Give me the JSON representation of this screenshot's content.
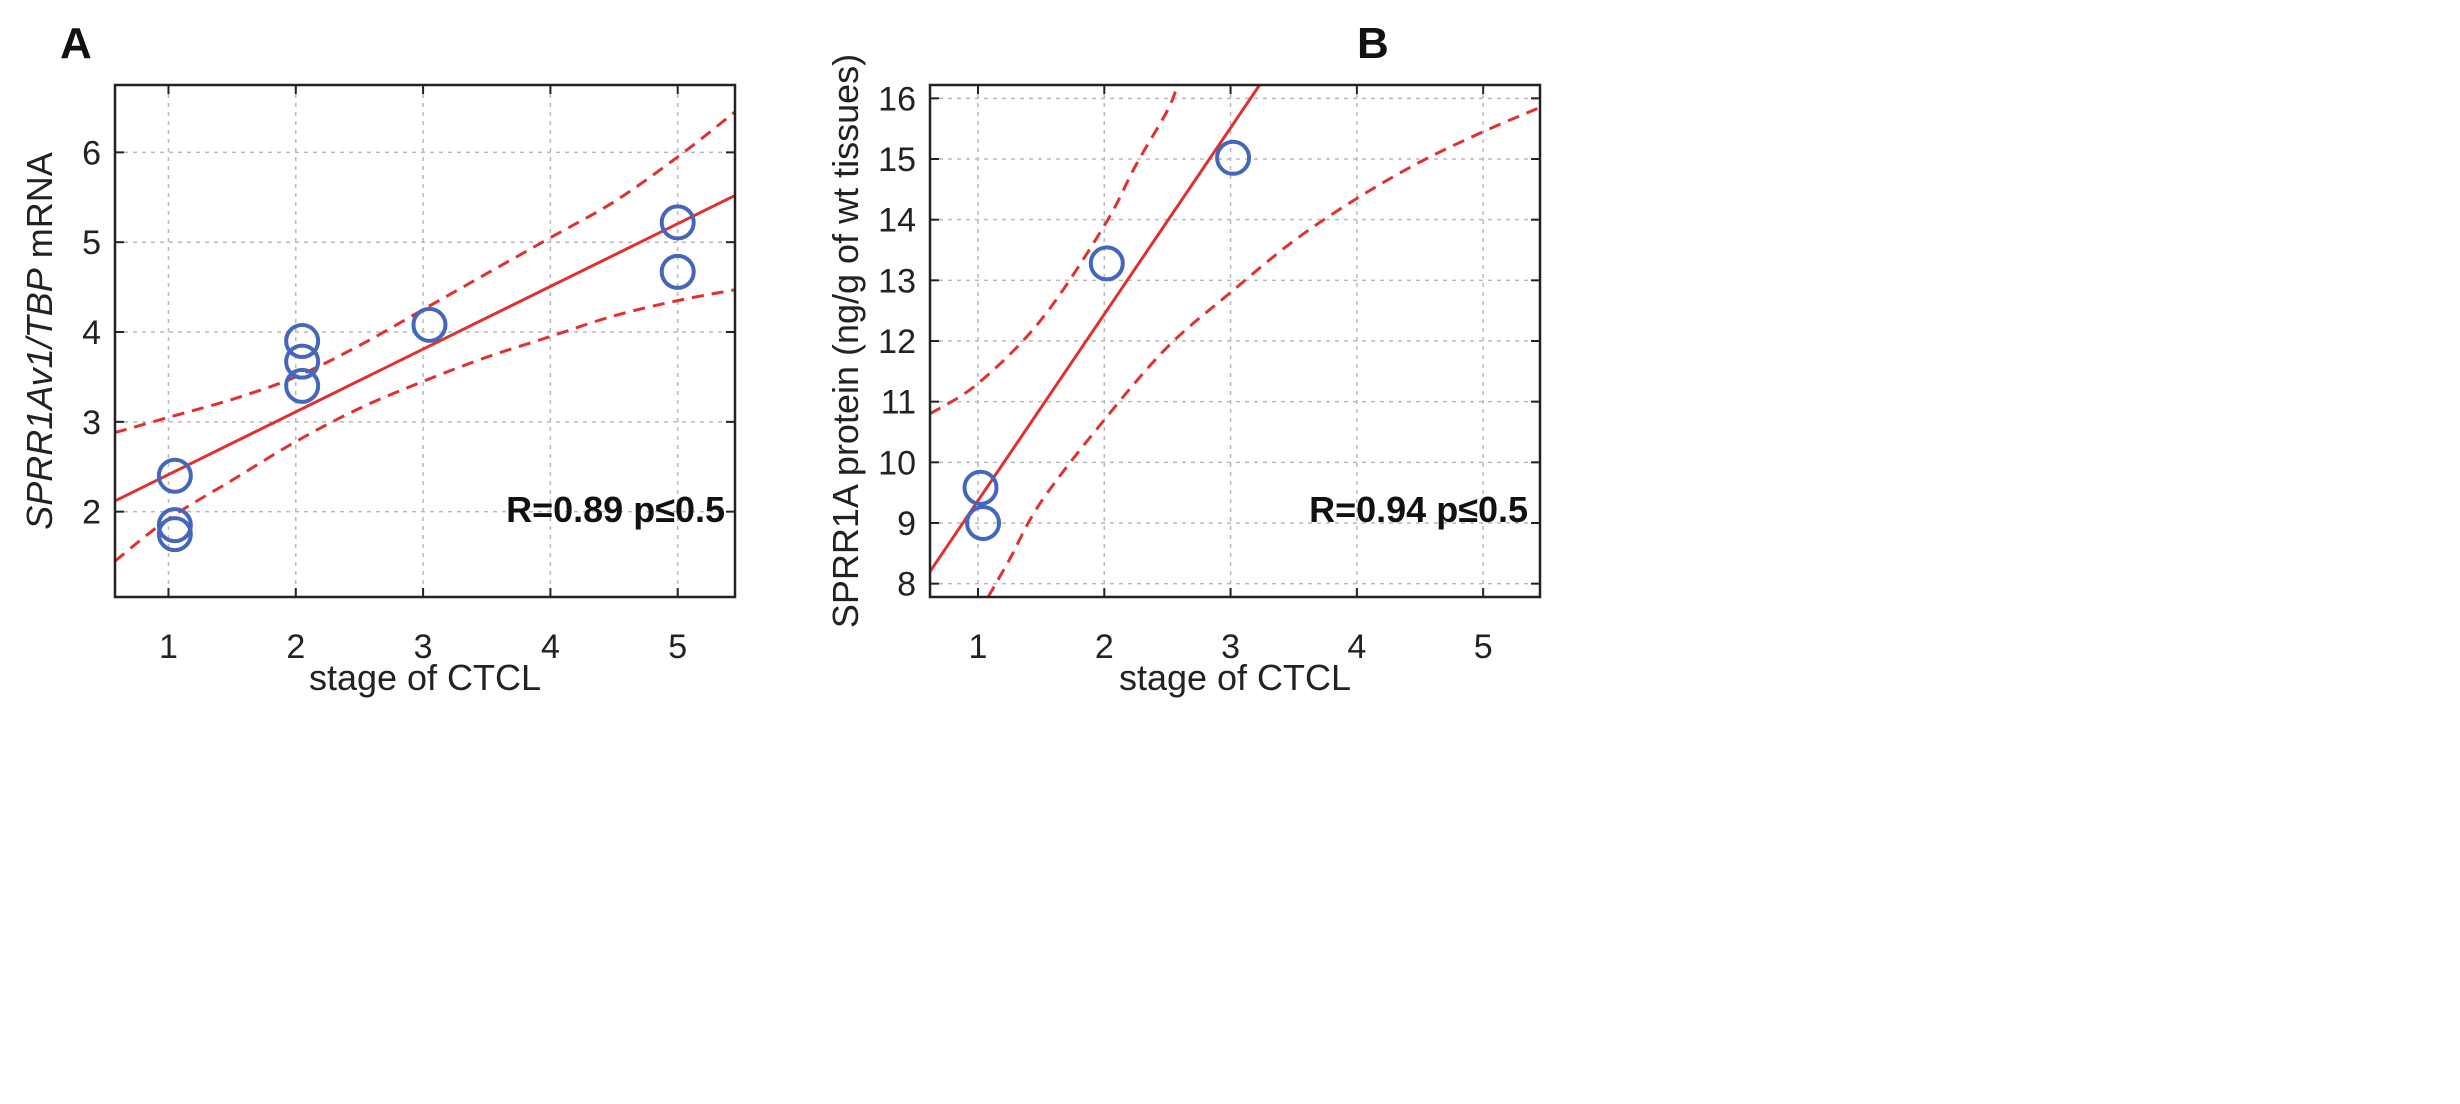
{
  "colors": {
    "fit": "#e03131",
    "points": "#4466bb"
  },
  "chart_data": [
    {
      "type": "scatter",
      "panel_label": "A",
      "xlabel": "stage of CTCL",
      "ylabel_parts": [
        {
          "text": "SPRR1Av1/TBP",
          "italic": true
        },
        {
          "text": " mRNA",
          "italic": false
        }
      ],
      "xlim": [
        0.58,
        5.45
      ],
      "ylim": [
        1.05,
        6.75
      ],
      "xticks": [
        1,
        2,
        3,
        4,
        5
      ],
      "yticks": [
        2,
        3,
        4,
        5,
        6
      ],
      "grid": true,
      "annotation": "R=0.89 p≤0.5",
      "points": [
        {
          "x": 1.05,
          "y": 2.4
        },
        {
          "x": 1.05,
          "y": 1.85
        },
        {
          "x": 1.05,
          "y": 1.75
        },
        {
          "x": 2.05,
          "y": 3.9
        },
        {
          "x": 2.05,
          "y": 3.67
        },
        {
          "x": 2.05,
          "y": 3.4
        },
        {
          "x": 3.05,
          "y": 4.08
        },
        {
          "x": 5.0,
          "y": 5.22
        },
        {
          "x": 5.0,
          "y": 4.67
        }
      ],
      "fit_line": {
        "x": [
          0.58,
          5.45
        ],
        "y": [
          2.12,
          5.52
        ]
      },
      "ci_upper": {
        "x": [
          0.58,
          1.0,
          1.5,
          2.0,
          2.5,
          3.0,
          3.5,
          4.0,
          4.5,
          5.0,
          5.45
        ],
        "y": [
          2.88,
          3.05,
          3.25,
          3.5,
          3.85,
          4.25,
          4.65,
          5.05,
          5.45,
          5.95,
          6.45
        ]
      },
      "ci_lower": {
        "x": [
          0.58,
          1.0,
          1.5,
          2.0,
          2.5,
          3.0,
          3.5,
          4.0,
          4.5,
          5.0,
          5.45
        ],
        "y": [
          1.45,
          1.92,
          2.35,
          2.78,
          3.15,
          3.45,
          3.72,
          3.95,
          4.18,
          4.35,
          4.47
        ]
      }
    },
    {
      "type": "scatter",
      "panel_label": "B",
      "xlabel": "stage of CTCL",
      "ylabel_parts": [
        {
          "text": "SPRR1A protein (ng/g of wt tissues)",
          "italic": false
        }
      ],
      "xlim": [
        0.62,
        5.45
      ],
      "ylim": [
        7.78,
        16.22
      ],
      "xticks": [
        1,
        2,
        3,
        4,
        5
      ],
      "yticks": [
        8,
        9,
        10,
        11,
        12,
        13,
        14,
        15,
        16
      ],
      "grid": true,
      "annotation": "R=0.94 p≤0.5",
      "points": [
        {
          "x": 1.02,
          "y": 9.58
        },
        {
          "x": 1.04,
          "y": 9.0
        },
        {
          "x": 2.02,
          "y": 13.28
        },
        {
          "x": 3.02,
          "y": 15.02
        }
      ],
      "fit_line": {
        "x": [
          0.62,
          3.23
        ],
        "y": [
          8.2,
          16.22
        ]
      },
      "ci_upper": {
        "x": [
          0.62,
          1.0,
          1.5,
          2.0,
          2.25,
          2.5,
          2.58
        ],
        "y": [
          10.8,
          11.3,
          12.35,
          13.9,
          14.9,
          15.8,
          16.22
        ]
      },
      "ci_lower": {
        "x": [
          1.08,
          1.25,
          1.5,
          2.0,
          2.5,
          3.0,
          3.5,
          4.0,
          4.5,
          5.0,
          5.45
        ],
        "y": [
          7.78,
          8.4,
          9.35,
          10.7,
          11.9,
          12.8,
          13.65,
          14.35,
          14.95,
          15.45,
          15.85
        ]
      }
    }
  ]
}
